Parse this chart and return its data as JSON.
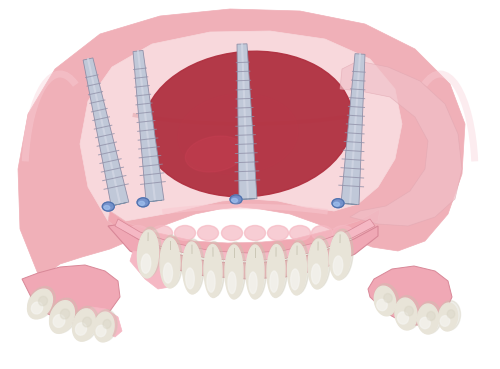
{
  "background_color": "#ffffff",
  "jaw_outer_color": "#f0b0b8",
  "jaw_inner_color": "#f5c8cc",
  "jaw_rim_color": "#e8a0a8",
  "tongue_color": "#b03040",
  "tongue_highlight": "#c04458",
  "gum_pink": "#f0a8b2",
  "gum_light": "#f8d0d5",
  "gum_ridge_color": "#f0b8c0",
  "implant_body_color": "#c0c8d8",
  "implant_thread_color": "#9090a8",
  "implant_tip_color": "#7090cc",
  "implant_tip_dark": "#5070aa",
  "tooth_main": "#e8e4d8",
  "tooth_dark": "#c8c4b0",
  "tooth_highlight": "#f5f4f0",
  "tooth_groove": "#b8b4a0",
  "denture_gum": "#f0a8b5",
  "denture_gum_dark": "#d88898",
  "floating_tooth_base": "#f0a8b0",
  "figsize": [
    5.0,
    3.69
  ],
  "dpi": 100
}
